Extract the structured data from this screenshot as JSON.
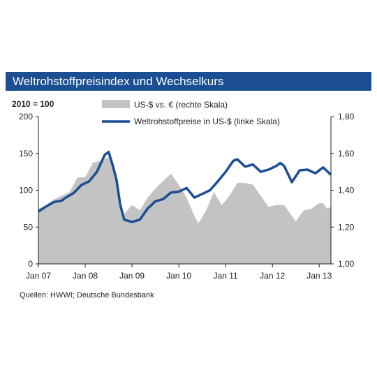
{
  "title": "Weltrohstoffpreisindex und Wechselkurs",
  "base_label": "2010 = 100",
  "source": "Quellen:  HWWI;  Deutsche  Bundesbank",
  "colors": {
    "title_bg": "#1c4e93",
    "area": "#c3c3c3",
    "line": "#1c4e93"
  },
  "chart_data": {
    "type": "line",
    "x_ticks": [
      "Jan 07",
      "Jan 08",
      "Jan 09",
      "Jan 10",
      "Jan 11",
      "Jan 12",
      "Jan 13"
    ],
    "x_range": [
      "2007-01",
      "2013-04"
    ],
    "y_left": {
      "ticks": [
        "0",
        "50",
        "100",
        "150",
        "200"
      ],
      "range": [
        0,
        200
      ]
    },
    "y_right": {
      "ticks": [
        "1,00",
        "1,20",
        "1,40",
        "1,60",
        "1,80"
      ],
      "range": [
        1.0,
        1.8
      ]
    },
    "series": [
      {
        "name": "US-$ vs. € (rechte Skala)",
        "type": "area",
        "axis": "right",
        "points": [
          [
            "2007-01",
            1.3
          ],
          [
            "2007-03",
            1.32
          ],
          [
            "2007-05",
            1.35
          ],
          [
            "2007-07",
            1.37
          ],
          [
            "2007-09",
            1.39
          ],
          [
            "2007-11",
            1.47
          ],
          [
            "2008-01",
            1.47
          ],
          [
            "2008-03",
            1.55
          ],
          [
            "2008-05",
            1.56
          ],
          [
            "2008-07",
            1.58
          ],
          [
            "2008-08",
            1.53
          ],
          [
            "2008-09",
            1.44
          ],
          [
            "2008-10",
            1.33
          ],
          [
            "2008-11",
            1.27
          ],
          [
            "2009-01",
            1.32
          ],
          [
            "2009-03",
            1.29
          ],
          [
            "2009-05",
            1.36
          ],
          [
            "2009-07",
            1.41
          ],
          [
            "2009-09",
            1.45
          ],
          [
            "2009-11",
            1.49
          ],
          [
            "2010-01",
            1.43
          ],
          [
            "2010-03",
            1.36
          ],
          [
            "2010-05",
            1.26
          ],
          [
            "2010-06",
            1.22
          ],
          [
            "2010-08",
            1.29
          ],
          [
            "2010-10",
            1.39
          ],
          [
            "2010-12",
            1.32
          ],
          [
            "2011-02",
            1.37
          ],
          [
            "2011-04",
            1.44
          ],
          [
            "2011-06",
            1.44
          ],
          [
            "2011-08",
            1.43
          ],
          [
            "2011-10",
            1.37
          ],
          [
            "2011-12",
            1.31
          ],
          [
            "2012-02",
            1.32
          ],
          [
            "2012-04",
            1.32
          ],
          [
            "2012-06",
            1.26
          ],
          [
            "2012-07",
            1.23
          ],
          [
            "2012-09",
            1.29
          ],
          [
            "2012-11",
            1.3
          ],
          [
            "2013-01",
            1.33
          ],
          [
            "2013-02",
            1.33
          ],
          [
            "2013-03",
            1.3
          ],
          [
            "2013-04",
            1.31
          ]
        ]
      },
      {
        "name": "Weltrohstoffpreise in US-$ (linke Skala)",
        "type": "line",
        "axis": "left",
        "points": [
          [
            "2007-01",
            71
          ],
          [
            "2007-03",
            78
          ],
          [
            "2007-05",
            84
          ],
          [
            "2007-07",
            86
          ],
          [
            "2007-08",
            90
          ],
          [
            "2007-10",
            96
          ],
          [
            "2007-12",
            107
          ],
          [
            "2008-02",
            112
          ],
          [
            "2008-04",
            125
          ],
          [
            "2008-06",
            148
          ],
          [
            "2008-07",
            152
          ],
          [
            "2008-08",
            135
          ],
          [
            "2008-09",
            115
          ],
          [
            "2008-10",
            80
          ],
          [
            "2008-11",
            60
          ],
          [
            "2009-01",
            57
          ],
          [
            "2009-03",
            60
          ],
          [
            "2009-05",
            75
          ],
          [
            "2009-07",
            85
          ],
          [
            "2009-09",
            88
          ],
          [
            "2009-11",
            97
          ],
          [
            "2010-01",
            98
          ],
          [
            "2010-03",
            103
          ],
          [
            "2010-05",
            90
          ],
          [
            "2010-07",
            95
          ],
          [
            "2010-09",
            100
          ],
          [
            "2010-11",
            112
          ],
          [
            "2011-01",
            125
          ],
          [
            "2011-03",
            140
          ],
          [
            "2011-04",
            142
          ],
          [
            "2011-06",
            132
          ],
          [
            "2011-08",
            135
          ],
          [
            "2011-10",
            125
          ],
          [
            "2011-12",
            128
          ],
          [
            "2012-02",
            133
          ],
          [
            "2012-03",
            137
          ],
          [
            "2012-04",
            133
          ],
          [
            "2012-06",
            111
          ],
          [
            "2012-08",
            127
          ],
          [
            "2012-10",
            128
          ],
          [
            "2012-12",
            123
          ],
          [
            "2013-02",
            131
          ],
          [
            "2013-04",
            121
          ]
        ]
      }
    ],
    "legend_placement": "top"
  }
}
